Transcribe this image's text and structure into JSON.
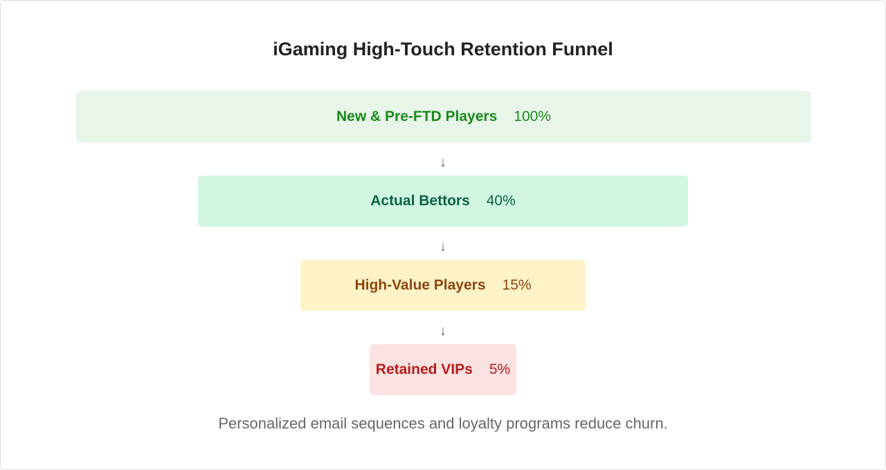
{
  "title": "iGaming High-Touch Retention Funnel",
  "stages": [
    {
      "label": "New & Pre-FTD Players",
      "percent": "100%",
      "value": 100,
      "bg": "#e8f5e9",
      "fg": "#1a8a1a"
    },
    {
      "label": "Actual Bettors",
      "percent": "40%",
      "value": 40,
      "bg": "#d1f7e3",
      "fg": "#0b6145"
    },
    {
      "label": "High-Value Players",
      "percent": "15%",
      "value": 15,
      "bg": "#fdf3c7",
      "fg": "#8f4510"
    },
    {
      "label": "Retained VIPs",
      "percent": "5%",
      "value": 5,
      "bg": "#fde2e2",
      "fg": "#b71c1c"
    }
  ],
  "arrow_glyph": "↓",
  "footnote": "Personalized email sequences and loyalty programs reduce churn."
}
